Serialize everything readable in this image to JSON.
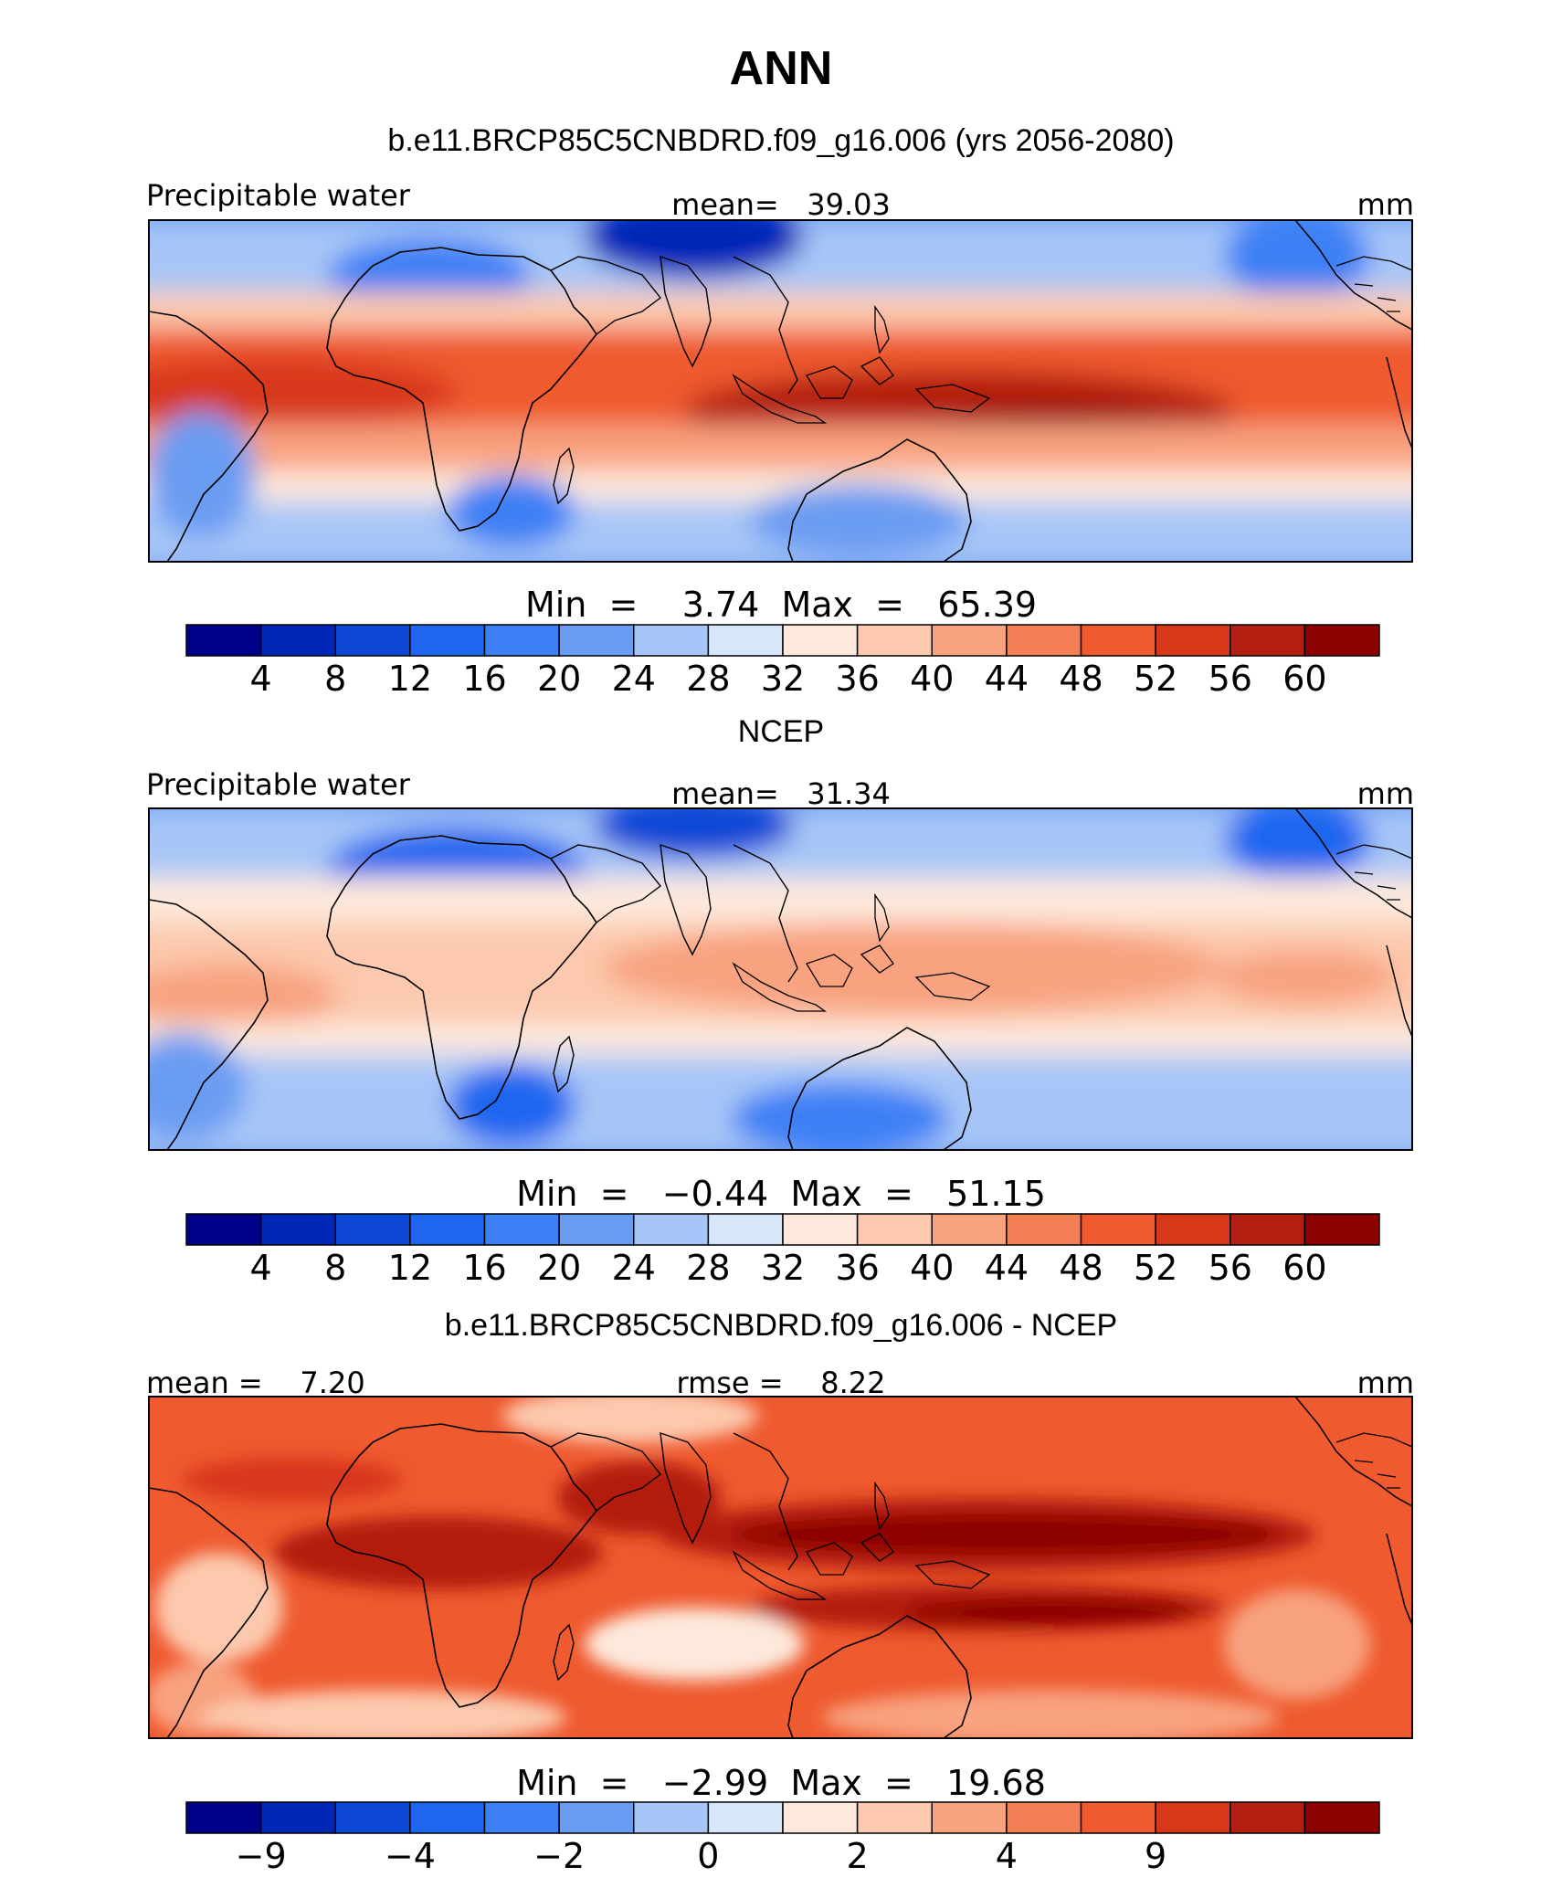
{
  "title": "ANN",
  "units": "mm",
  "colors": [
    "#00008b",
    "#0026b8",
    "#0d47d6",
    "#1e66f0",
    "#3d80f5",
    "#6a9cf2",
    "#a7c6f7",
    "#d6e6fb",
    "#fde9dc",
    "#fcc9ae",
    "#f8a27f",
    "#f47f55",
    "#ef5a2f",
    "#d8381a",
    "#b31f11",
    "#8b0000"
  ],
  "panels": [
    {
      "heading": "b.e11.BRCP85C5CNBDRD.f09_g16.006 (yrs 2056-2080)",
      "left_label": "Precipitable water",
      "center_label": "mean=   39.03",
      "right_label": "mm",
      "minmax": "Min  =    3.74  Max  =   65.39",
      "ticks": [
        "4",
        "8",
        "12",
        "16",
        "20",
        "24",
        "28",
        "32",
        "36",
        "40",
        "44",
        "48",
        "52",
        "56",
        "60"
      ]
    },
    {
      "heading": "NCEP",
      "left_label": "Precipitable water",
      "center_label": "mean=   31.34",
      "right_label": "mm",
      "minmax": "Min  =   −0.44  Max  =   51.15",
      "ticks": [
        "4",
        "8",
        "12",
        "16",
        "20",
        "24",
        "28",
        "32",
        "36",
        "40",
        "44",
        "48",
        "52",
        "56",
        "60"
      ]
    },
    {
      "heading": "b.e11.BRCP85C5CNBDRD.f09_g16.006 - NCEP",
      "left_label": "mean =    7.20",
      "center_label": "rmse =    8.22",
      "right_label": "mm",
      "minmax": "Min  =   −2.99  Max  =   19.68",
      "ticks": [
        "−9",
        "",
        "−4",
        "",
        "−2",
        "",
        "0",
        "",
        "2",
        "",
        "4",
        "",
        "9",
        "",
        ""
      ]
    }
  ]
}
